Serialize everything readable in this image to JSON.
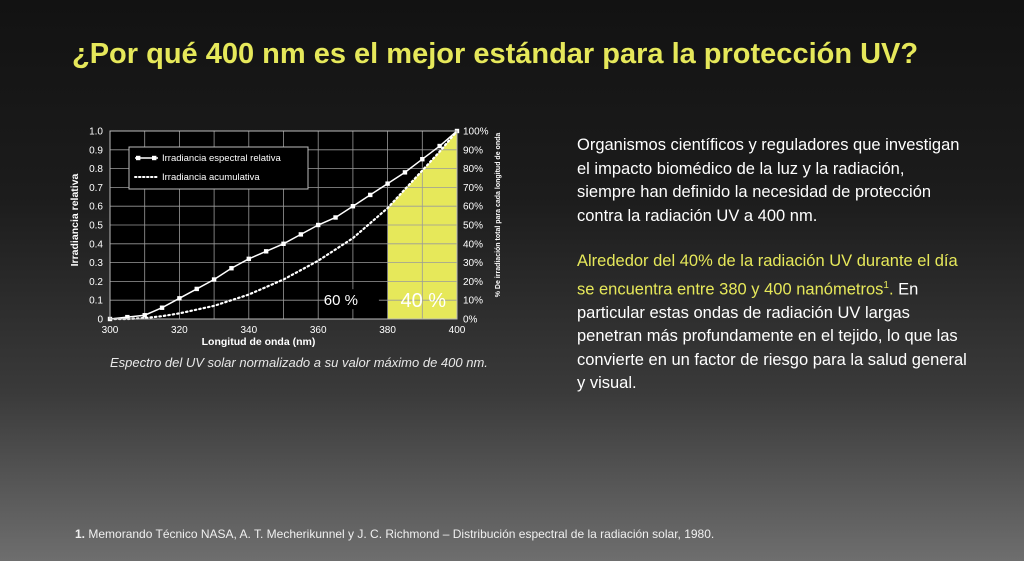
{
  "title": "¿Por qué 400 nm es el mejor estándar para la protección UV?",
  "caption": "Espectro del UV solar normalizado a su valor máximo de 400 nm.",
  "paragraph_1": "Organismos científicos y reguladores que investigan el impacto biomédico de la luz y la radiación, siempre han definido la necesidad de protección contra la radiación UV a 400 nm.",
  "paragraph_2": {
    "highlight": "Alrededor del 40% de la radiación UV durante el día se encuentra entre 380 y 400 nanómetros",
    "superscript": "1",
    "after_highlight": ".",
    "rest": "En particular estas ondas de radiación UV largas penetran más profundamente en el tejido, lo que las convierte en un factor de riesgo para la salud general y visual."
  },
  "footnote": {
    "number": "1.",
    "text": "Memorando Técnico NASA, A. T. Mecherikunnel y J. C. Richmond – Distribución espectral de la radiación solar, 1980."
  },
  "colors": {
    "title": "#e6e85a",
    "highlight_area": "#e6e85a",
    "highlight_text": "#e6e85a"
  },
  "chart_data": {
    "type": "line",
    "xlabel": "Longitud de onda (nm)",
    "ylabel": "Irradiancia relativa",
    "y2label": "% De irradiación total para cada longitud de onda",
    "xlim": [
      300,
      400
    ],
    "ylim": [
      0,
      1.0
    ],
    "y2lim": [
      0,
      100
    ],
    "x_ticks": [
      300,
      320,
      340,
      360,
      380,
      400
    ],
    "x_tick_labels": [
      "300",
      "320",
      "340",
      "360",
      "380",
      "400"
    ],
    "y_ticks": [
      0,
      0.1,
      0.2,
      0.3,
      0.4,
      0.5,
      0.6,
      0.7,
      0.8,
      0.9,
      1.0
    ],
    "y_tick_labels": [
      "0",
      "0.1",
      "0.2",
      "0.3",
      "0.4",
      "0.5",
      "0.6",
      "0.7",
      "0.8",
      "0.9",
      "1.0"
    ],
    "y2_ticks": [
      0,
      10,
      20,
      30,
      40,
      50,
      60,
      70,
      80,
      90,
      100
    ],
    "y2_tick_labels": [
      "0%",
      "10%",
      "20%",
      "30%",
      "40%",
      "50%",
      "60%",
      "70%",
      "80%",
      "90%",
      "100%"
    ],
    "grid": true,
    "legend_position": "top-left",
    "series": [
      {
        "name": "Irradiancia espectral relativa",
        "style": "solid-square-markers",
        "x": [
          300,
          305,
          310,
          315,
          320,
          325,
          330,
          335,
          340,
          345,
          350,
          355,
          360,
          365,
          370,
          375,
          380,
          385,
          390,
          395,
          400
        ],
        "values": [
          0.0,
          0.01,
          0.02,
          0.06,
          0.11,
          0.16,
          0.21,
          0.27,
          0.32,
          0.36,
          0.4,
          0.45,
          0.5,
          0.54,
          0.6,
          0.66,
          0.72,
          0.78,
          0.85,
          0.92,
          1.0
        ]
      },
      {
        "name": "Irradiancia acumulativa",
        "style": "dotted",
        "x": [
          300,
          305,
          310,
          315,
          320,
          325,
          330,
          335,
          340,
          345,
          350,
          355,
          360,
          365,
          370,
          375,
          380,
          385,
          390,
          395,
          400
        ],
        "values": [
          0.0,
          0.0,
          0.005,
          0.015,
          0.03,
          0.05,
          0.07,
          0.1,
          0.13,
          0.17,
          0.21,
          0.26,
          0.31,
          0.37,
          0.43,
          0.51,
          0.59,
          0.69,
          0.79,
          0.89,
          1.0
        ]
      }
    ],
    "highlight_range": [
      380,
      400
    ],
    "annotations": [
      {
        "text": "60 %",
        "x": 370,
        "y": 0.1
      },
      {
        "text": "40 %",
        "x": 390,
        "y": 0.1
      }
    ]
  }
}
